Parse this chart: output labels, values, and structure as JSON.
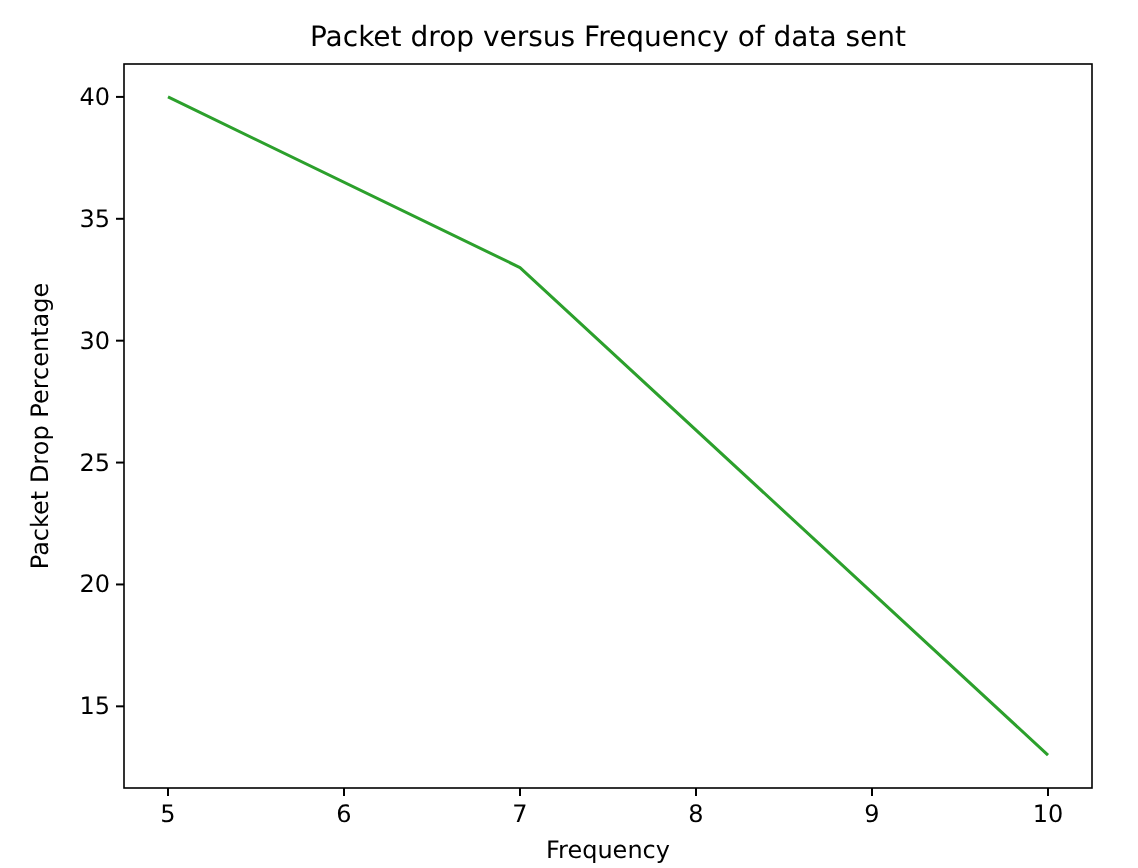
{
  "chart_data": {
    "type": "line",
    "title": "Packet drop versus Frequency of data sent",
    "xlabel": "Frequency",
    "ylabel": "Packet Drop Percentage",
    "x": [
      5,
      7,
      10
    ],
    "series": [
      {
        "color": "#2ca02c",
        "values": [
          40,
          33,
          13
        ]
      }
    ],
    "xlim": [
      4.75,
      10.25
    ],
    "xticks": [
      5,
      6,
      7,
      8,
      9,
      10
    ],
    "ylim": [
      11.65,
      41.35
    ],
    "yticks": [
      15,
      20,
      25,
      30,
      35,
      40
    ],
    "marker": "none",
    "line_style": "solid"
  }
}
